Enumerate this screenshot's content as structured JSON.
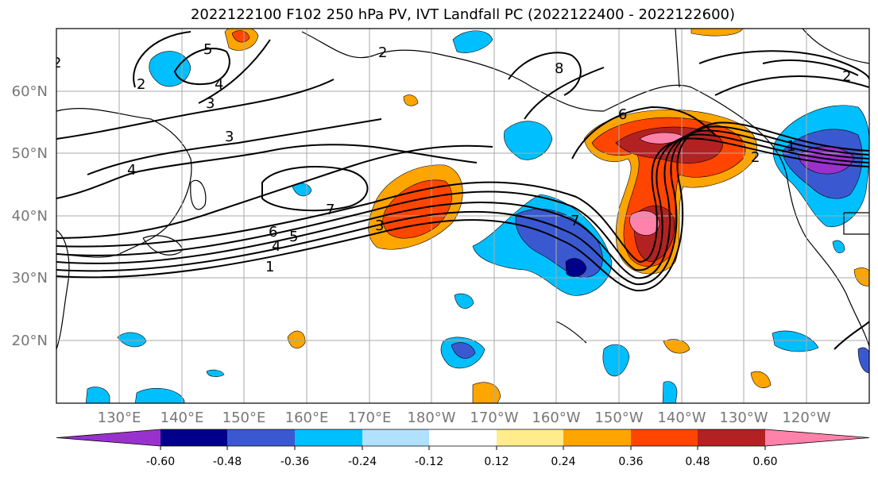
{
  "title": "2022122100 F102 250 hPa PV, IVT Landfall PC (2022122400 - 2022122600)",
  "lat_labels": [
    "60°N",
    "50°N",
    "40°N",
    "30°N",
    "20°N"
  ],
  "lon_labels": [
    "130°E",
    "140°E",
    "150°E",
    "160°E",
    "170°E",
    "180°W",
    "170°W",
    "160°W",
    "150°W",
    "140°W",
    "130°W",
    "120°W"
  ],
  "contour_labels": [
    "2",
    "5",
    "4",
    "3",
    "2",
    "3",
    "4",
    "7",
    "6",
    "5",
    "4",
    "1",
    "8",
    "6",
    "7",
    "2",
    "3",
    "2",
    "1",
    "2"
  ],
  "colorbar": {
    "ticks": [
      "-0.60",
      "-0.48",
      "-0.36",
      "-0.24",
      "-0.12",
      "0.12",
      "0.24",
      "0.36",
      "0.48",
      "0.60"
    ],
    "colors": [
      "#9932cc",
      "#00008b",
      "#3a59d1",
      "#00bfff",
      "#b0e2ff",
      "#ffffff",
      "#ffec8b",
      "#ffa500",
      "#ff4500",
      "#b22222",
      "#ff82ab"
    ]
  }
}
